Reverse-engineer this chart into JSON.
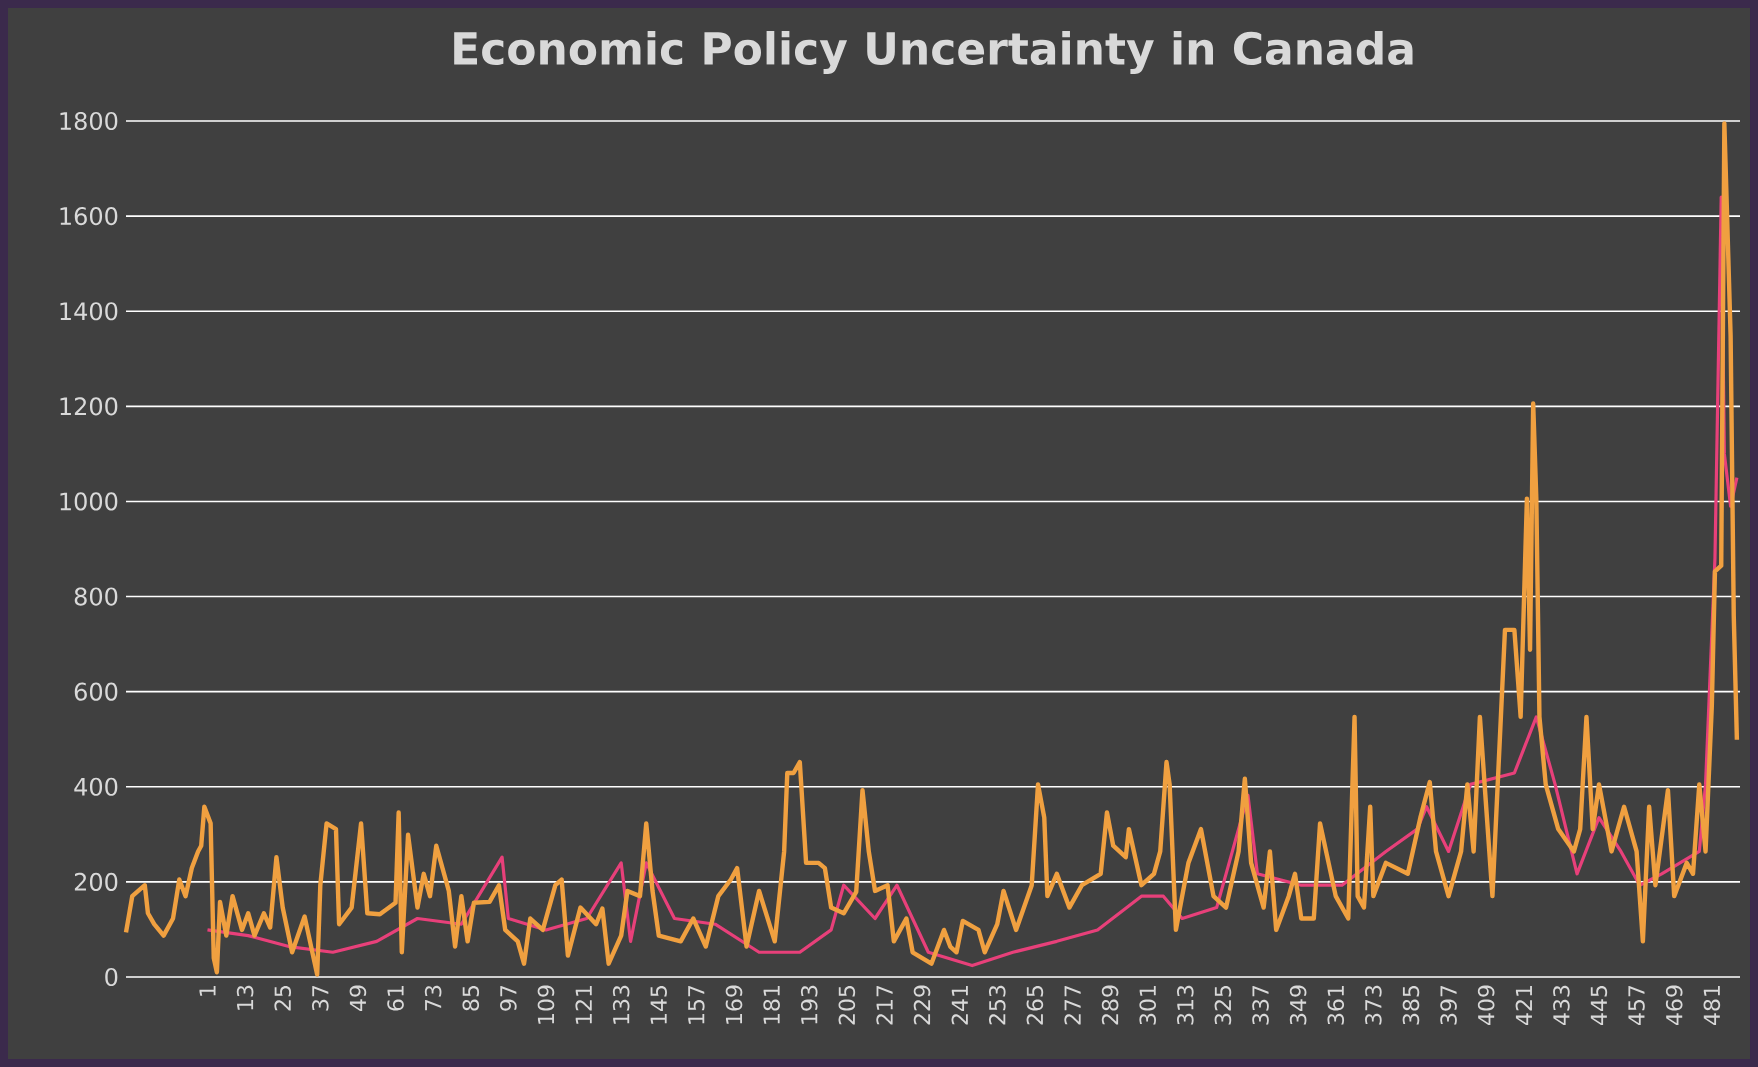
{
  "chart_data": {
    "type": "line",
    "title": "Economic Policy Uncertainty in Canada",
    "xlim": [
      -25,
      490
    ],
    "ylim": [
      0,
      1800
    ],
    "xticks": [
      1,
      13,
      25,
      37,
      49,
      61,
      73,
      85,
      97,
      109,
      121,
      133,
      145,
      157,
      169,
      181,
      193,
      205,
      217,
      229,
      241,
      253,
      265,
      277,
      289,
      301,
      313,
      325,
      337,
      349,
      361,
      373,
      385,
      397,
      409,
      421,
      433,
      445,
      457,
      469,
      481
    ],
    "yticks": [
      0,
      200,
      400,
      600,
      800,
      1000,
      1200,
      1400,
      1600,
      1800
    ],
    "grid": "y",
    "series": [
      {
        "color": "#e8407a",
        "x": [
          1,
          14,
          27,
          41,
          55,
          68,
          82,
          95,
          97,
          109,
          122,
          133,
          136,
          141,
          150,
          163,
          177,
          190,
          200,
          204,
          214,
          221,
          231,
          245,
          258,
          272,
          285,
          299,
          306,
          312,
          323,
          333,
          336,
          350,
          363,
          377,
          387,
          390,
          397,
          404,
          418,
          425,
          431,
          438,
          445,
          452,
          458,
          465,
          477,
          479,
          482,
          484,
          485,
          487,
          489
        ],
        "values": [
          99,
          87,
          64,
          52,
          75,
          123,
          111,
          252,
          123,
          99,
          123,
          240,
          75,
          240,
          123,
          111,
          52,
          52,
          99,
          193,
          123,
          193,
          52,
          24,
          52,
          75,
          99,
          170,
          170,
          123,
          146,
          382,
          217,
          193,
          193,
          264,
          311,
          358,
          264,
          405,
          429,
          547,
          405,
          217,
          335,
          264,
          193,
          217,
          264,
          405,
          880,
          1640,
          1100,
          990,
          1050
        ]
      },
      {
        "color": "#f0a040",
        "x": [
          -25,
          -23,
          -19,
          -18,
          -16,
          -13,
          -10,
          -8,
          -6,
          -4,
          -2,
          -1,
          0,
          2,
          3,
          4,
          5,
          7,
          9,
          12,
          14,
          16,
          19,
          21,
          23,
          25,
          28,
          32,
          36,
          37,
          39,
          42,
          43,
          47,
          50,
          52,
          56,
          61,
          62,
          63,
          65,
          68,
          70,
          72,
          74,
          78,
          80,
          82,
          84,
          86,
          91,
          94,
          96,
          100,
          102,
          104,
          108,
          112,
          114,
          116,
          120,
          125,
          127,
          129,
          133,
          135,
          139,
          141,
          143,
          145,
          152,
          156,
          160,
          164,
          168,
          170,
          173,
          177,
          182,
          185,
          186,
          188,
          190,
          192,
          196,
          198,
          200,
          204,
          208,
          210,
          212,
          214,
          218,
          220,
          224,
          226,
          232,
          236,
          238,
          240,
          242,
          247,
          249,
          253,
          255,
          259,
          264,
          266,
          268,
          269,
          272,
          276,
          280,
          286,
          288,
          290,
          294,
          295,
          299,
          303,
          305,
          307,
          308,
          310,
          312,
          314,
          318,
          322,
          326,
          330,
          332,
          334,
          338,
          340,
          342,
          346,
          348,
          350,
          354,
          356,
          361,
          365,
          367,
          368,
          370,
          372,
          373,
          377,
          384,
          388,
          391,
          393,
          397,
          401,
          403,
          405,
          407,
          409,
          411,
          415,
          418,
          420,
          422,
          423,
          424,
          425,
          426,
          428,
          432,
          437,
          439,
          441,
          443,
          445,
          449,
          453,
          457,
          459,
          461,
          463,
          467,
          469,
          473,
          475,
          477,
          479,
          481,
          482,
          484,
          485,
          487,
          488,
          489
        ],
        "values": [
          94,
          170,
          193,
          134,
          111,
          87,
          123,
          205,
          170,
          229,
          264,
          276,
          358,
          323,
          40,
          10,
          158,
          87,
          170,
          99,
          134,
          87,
          134,
          104,
          252,
          146,
          52,
          127,
          5,
          193,
          323,
          311,
          111,
          146,
          323,
          134,
          132,
          156,
          346,
          52,
          299,
          146,
          217,
          170,
          276,
          181,
          64,
          170,
          75,
          156,
          158,
          193,
          99,
          75,
          28,
          123,
          99,
          193,
          205,
          45,
          146,
          111,
          144,
          28,
          87,
          181,
          170,
          323,
          181,
          87,
          75,
          123,
          64,
          170,
          205,
          229,
          64,
          181,
          75,
          264,
          429,
          429,
          452,
          240,
          240,
          229,
          146,
          134,
          179,
          393,
          264,
          181,
          193,
          75,
          123,
          52,
          28,
          99,
          64,
          52,
          118,
          99,
          52,
          111,
          181,
          99,
          193,
          405,
          335,
          170,
          217,
          146,
          193,
          217,
          346,
          276,
          252,
          311,
          193,
          217,
          264,
          452,
          405,
          99,
          170,
          240,
          311,
          170,
          146,
          264,
          417,
          240,
          146,
          264,
          99,
          170,
          217,
          123,
          123,
          323,
          170,
          123,
          547,
          170,
          146,
          358,
          170,
          240,
          217,
          335,
          410,
          264,
          170,
          264,
          405,
          264,
          547,
          358,
          170,
          730,
          730,
          547,
          1006,
          688,
          1206,
          1006,
          547,
          405,
          311,
          264,
          311,
          547,
          311,
          405,
          264,
          358,
          264,
          75,
          358,
          193,
          393,
          170,
          240,
          217,
          405,
          264,
          570,
          853,
          865,
          1795,
          1348,
          759,
          499
        ]
      }
    ]
  }
}
